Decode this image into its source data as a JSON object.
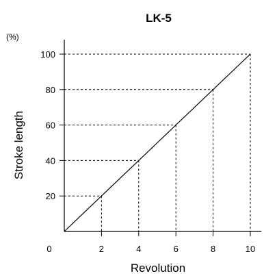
{
  "chart_data": {
    "type": "line",
    "title": "LK-5",
    "xlabel": "Revolution",
    "ylabel": "Stroke length",
    "y_unit": "(%)",
    "origin_label": "0",
    "xlim": [
      0,
      10
    ],
    "ylim": [
      0,
      100
    ],
    "x_ticks": [
      2,
      4,
      6,
      8,
      10
    ],
    "y_ticks": [
      20,
      40,
      60,
      80,
      100
    ],
    "grid": false,
    "series": [
      {
        "x": [
          0,
          2,
          4,
          6,
          8,
          10
        ],
        "y": [
          0,
          20,
          40,
          60,
          80,
          100
        ]
      }
    ],
    "reference_lines": [
      {
        "x": 2,
        "y": 20
      },
      {
        "x": 4,
        "y": 40
      },
      {
        "x": 6,
        "y": 60
      },
      {
        "x": 8,
        "y": 80
      },
      {
        "x": 10,
        "y": 100
      }
    ],
    "colors": {
      "line": "#000000",
      "axis": "#000000",
      "reference": "#000000"
    }
  }
}
